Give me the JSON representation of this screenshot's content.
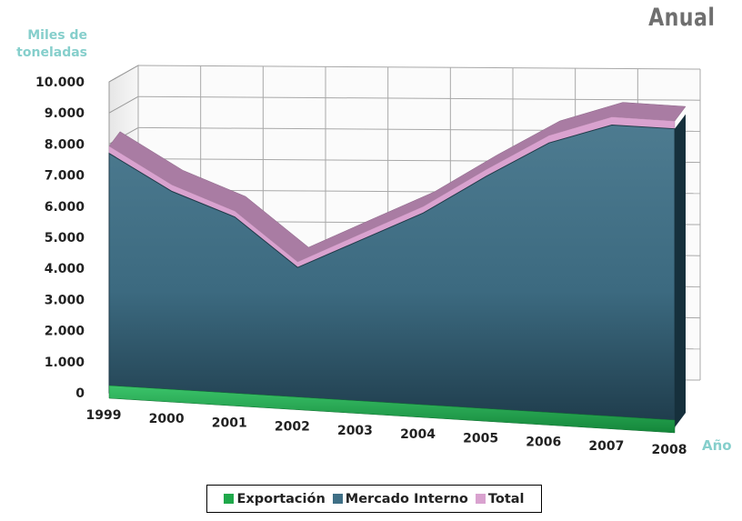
{
  "title": "Anual",
  "chart_data": {
    "type": "area",
    "title": "Anual",
    "xlabel": "Año",
    "ylabel": "Miles de toneladas",
    "categories": [
      "1999",
      "2000",
      "2001",
      "2002",
      "2003",
      "2004",
      "2005",
      "2006",
      "2007",
      "2008"
    ],
    "ylim": [
      0,
      10000
    ],
    "yticks": [
      "0",
      "1.000",
      "2.000",
      "3.000",
      "4.000",
      "5.000",
      "6.000",
      "7.000",
      "8.000",
      "9.000",
      "10.000"
    ],
    "grid": true,
    "three_d": true,
    "legend_position": "bottom",
    "series": [
      {
        "name": "Exportación",
        "color": "#1fa84a",
        "values": [
          230,
          210,
          190,
          180,
          200,
          210,
          220,
          240,
          260,
          250
        ]
      },
      {
        "name": "Mercado Interno",
        "color": "#3f6f86",
        "values": [
          7700,
          6600,
          5900,
          4400,
          5400,
          6400,
          7700,
          8900,
          9600,
          9600
        ]
      },
      {
        "name": "Total",
        "color": "#d9a2cf",
        "values": [
          7930,
          6810,
          6090,
          4580,
          5600,
          6610,
          7920,
          9140,
          9860,
          9850
        ]
      }
    ]
  }
}
